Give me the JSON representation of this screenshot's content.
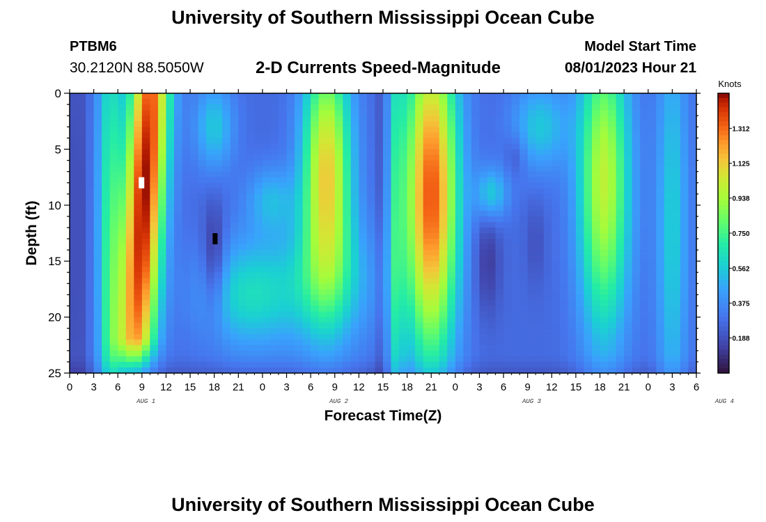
{
  "header": {
    "title": "University of Southern Mississippi Ocean Cube",
    "station_id": "PTBM6",
    "station_coords": "30.2120N  88.5050W",
    "subtitle": "2-D Currents Speed-Magnitude",
    "model_start_label": "Model Start Time",
    "model_start_value": "08/01/2023 Hour 21"
  },
  "footer": {
    "title": "University of Southern Mississippi Ocean Cube"
  },
  "chart_data": {
    "type": "heatmap",
    "title": "2-D Currents Speed-Magnitude",
    "xlabel": "Forecast Time(Z)",
    "ylabel": "Depth (ft)",
    "x_tick_labels": [
      "0",
      "3",
      "6",
      "9",
      "12",
      "15",
      "18",
      "21",
      "0",
      "3",
      "6",
      "9",
      "12",
      "15",
      "18",
      "21",
      "0",
      "3",
      "6",
      "9",
      "12",
      "15",
      "18",
      "21",
      "0",
      "3",
      "6"
    ],
    "day_labels": [
      {
        "label": "AUG 1",
        "at_hour": 9.5
      },
      {
        "label": "AUG 2",
        "at_hour": 33.5
      },
      {
        "label": "AUG 3",
        "at_hour": 57.5
      },
      {
        "label": "AUG 4",
        "at_hour": 81.5
      }
    ],
    "x_range_hours": [
      0,
      78
    ],
    "y_range_ft": [
      0,
      25
    ],
    "y_ticks": [
      0,
      5,
      10,
      15,
      20,
      25
    ],
    "colorbar": {
      "unit_label": "Knots",
      "range": [
        0,
        1.5
      ],
      "tick_labels": [
        "0.188",
        "0.375",
        "0.562",
        "0.750",
        "0.938",
        "1.125",
        "1.312"
      ],
      "tick_values": [
        0.188,
        0.375,
        0.562,
        0.75,
        0.938,
        1.125,
        1.312
      ]
    },
    "speed_peaks_knots": [
      {
        "hour_range": [
          6,
          14
        ],
        "depth_range_ft": [
          0,
          24
        ],
        "max": 1.45
      },
      {
        "hour_range": [
          28,
          36
        ],
        "depth_range_ft": [
          0,
          15
        ],
        "max": 1.1
      },
      {
        "hour_range": [
          41,
          49
        ],
        "depth_range_ft": [
          0,
          22
        ],
        "max": 1.35
      },
      {
        "hour_range": [
          62,
          71
        ],
        "depth_range_ft": [
          0,
          20
        ],
        "max": 1.0
      }
    ],
    "speed_minima_knots": [
      {
        "hour": 18,
        "depth_ft": 13,
        "min": 0.05
      },
      {
        "hour": 52,
        "depth_ft": 15,
        "min": 0.1
      },
      {
        "hour": 55.5,
        "depth_ft": 5.5,
        "min": 0.18
      }
    ]
  }
}
